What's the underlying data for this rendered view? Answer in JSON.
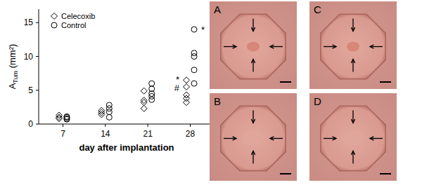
{
  "chart_data": {
    "type": "scatter",
    "x_label": "day after implantation",
    "y_label": [
      "A",
      "Tum",
      " (mm²)"
    ],
    "xlim": [
      3,
      32
    ],
    "xticks": [
      7,
      14,
      21,
      28
    ],
    "ylim": [
      0,
      17
    ],
    "yticks": [
      0,
      5,
      10,
      15
    ],
    "legend": "upper left",
    "grid": false,
    "series": [
      {
        "name": "Celecoxib",
        "color": "#000000",
        "marker": "diamond",
        "x": [
          7,
          7,
          7,
          14,
          14,
          14,
          21,
          21,
          21,
          21,
          28,
          28,
          28,
          28,
          28
        ],
        "values": [
          1.3,
          1.0,
          0.8,
          2.0,
          1.7,
          1.4,
          4.9,
          3.5,
          3.2,
          2.3,
          6.5,
          5.5,
          4.3,
          3.8,
          3.2
        ]
      },
      {
        "name": "Control",
        "color": "#000000",
        "marker": "circle",
        "x": [
          7,
          7,
          7,
          7,
          14,
          14,
          14,
          14,
          21,
          21,
          21,
          21,
          21,
          28,
          28,
          28,
          28,
          28
        ],
        "values": [
          1.0,
          0.8,
          0.7,
          1.1,
          2.8,
          2.3,
          1.8,
          1.0,
          6.0,
          5.2,
          4.5,
          4.1,
          3.6,
          14.0,
          10.5,
          10.0,
          8.0,
          6.0
        ]
      }
    ],
    "annotations": [
      {
        "text": "*",
        "x": 28,
        "y": 6.6,
        "series": 0
      },
      {
        "text": "#",
        "x": 28,
        "y": 5.4,
        "series": 0
      },
      {
        "text": "*",
        "x": 28,
        "y": 14.0,
        "series": 1
      }
    ]
  },
  "panels": {
    "labels": [
      "A",
      "B",
      "C",
      "D"
    ]
  }
}
